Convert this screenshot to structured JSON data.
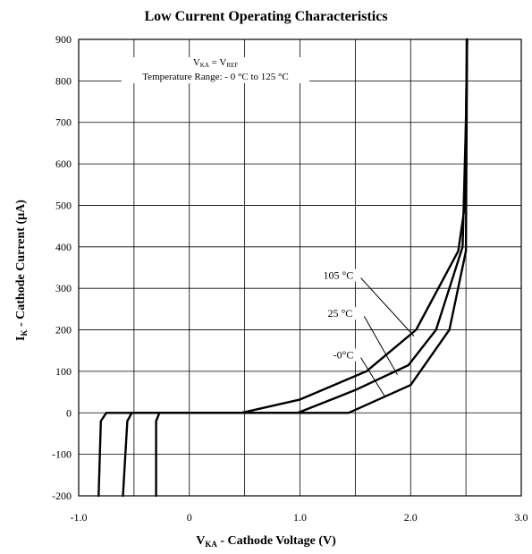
{
  "title": "Low Current Operating Characteristics",
  "y_axis": {
    "label_main": "I",
    "label_sub": "K",
    "label_rest": " - Cathode Current (µA)"
  },
  "x_axis": {
    "label_main": "V",
    "label_sub": "KA",
    "label_rest": " - Cathode Voltage (V)"
  },
  "annotation": {
    "line1_a": "V",
    "line1_a_sub": "KA",
    "line1_mid": " = V",
    "line1_b_sub": "REF",
    "line2": "Temperature Range: - 0 °C to 125 °C"
  },
  "chart_data": {
    "type": "line",
    "title": "Low Current Operating Characteristics",
    "xlabel": "VKA - Cathode Voltage (V)",
    "ylabel": "IK - Cathode Current (µA)",
    "xlim": [
      -1.0,
      3.0
    ],
    "ylim": [
      -200,
      900
    ],
    "x_ticks": [
      -1.0,
      -0.5,
      0,
      0.5,
      1.0,
      1.5,
      2.0,
      2.5,
      3.0
    ],
    "x_tick_labels": [
      "-1.0",
      "",
      "0",
      "",
      "1.0",
      "",
      "2.0",
      "",
      "3.0"
    ],
    "y_ticks": [
      -200,
      -100,
      0,
      100,
      200,
      300,
      400,
      500,
      600,
      700,
      800,
      900
    ],
    "y_tick_labels": [
      "-200",
      "-100",
      "0",
      "100",
      "200",
      "300",
      "400",
      "500",
      "600",
      "700",
      "800",
      "900"
    ],
    "grid": true,
    "series": [
      {
        "name": "105 °C",
        "points": [
          [
            -0.82,
            -200
          ],
          [
            -0.8,
            -20
          ],
          [
            -0.75,
            0
          ],
          [
            0.47,
            0
          ],
          [
            1.0,
            32
          ],
          [
            1.6,
            100
          ],
          [
            2.05,
            200
          ],
          [
            2.43,
            390
          ],
          [
            2.49,
            500
          ],
          [
            2.5,
            700
          ],
          [
            2.51,
            900
          ]
        ]
      },
      {
        "name": "25 °C",
        "points": [
          [
            -0.6,
            -200
          ],
          [
            -0.56,
            -20
          ],
          [
            -0.52,
            0
          ],
          [
            0.98,
            0
          ],
          [
            1.5,
            55
          ],
          [
            1.98,
            115
          ],
          [
            2.23,
            200
          ],
          [
            2.47,
            400
          ],
          [
            2.5,
            700
          ],
          [
            2.51,
            900
          ]
        ]
      },
      {
        "name": "-0°C",
        "points": [
          [
            -0.3,
            -200
          ],
          [
            -0.3,
            -20
          ],
          [
            -0.27,
            0
          ],
          [
            1.44,
            0
          ],
          [
            2.0,
            67
          ],
          [
            2.35,
            200
          ],
          [
            2.5,
            390
          ],
          [
            2.51,
            900
          ]
        ]
      }
    ],
    "labels": [
      {
        "text": "105 °C",
        "series": "105 °C"
      },
      {
        "text": "25 °C",
        "series": "25 °C"
      },
      {
        "text": "-0°C",
        "series": "-0°C"
      }
    ]
  }
}
